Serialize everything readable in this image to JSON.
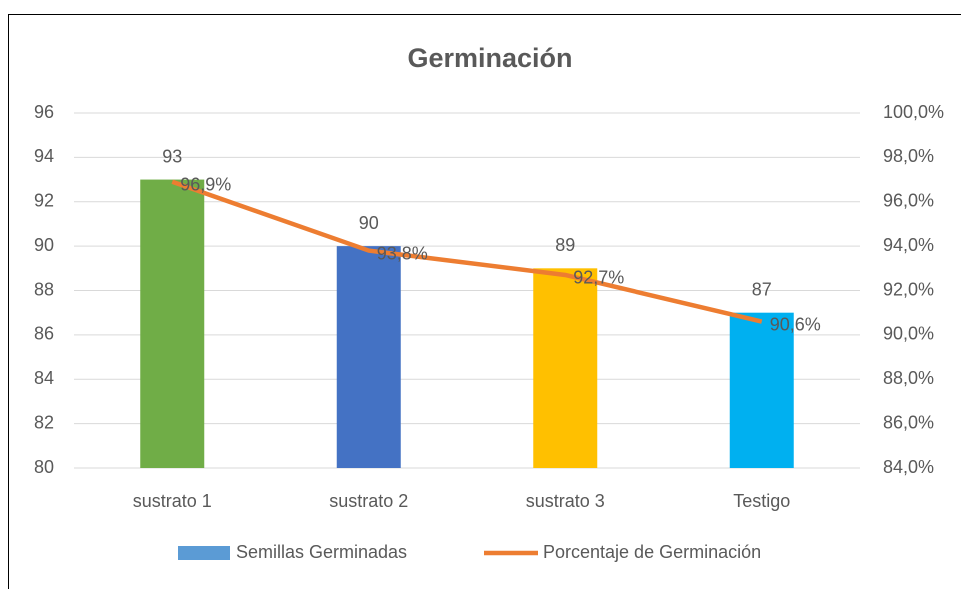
{
  "chart_data": {
    "type": "bar",
    "title": "Germinación",
    "categories": [
      "sustrato 1",
      "sustrato 2",
      "sustrato 3",
      "Testigo"
    ],
    "series": [
      {
        "name": "Semillas Germinadas",
        "type": "bar",
        "color": "#5b9bd5",
        "colors": [
          "#70ad47",
          "#4472c4",
          "#ffc000",
          "#00b0f0"
        ],
        "values": [
          93,
          90,
          89,
          87
        ]
      },
      {
        "name": "Porcentaje de Germinación",
        "type": "line",
        "axis": "y2",
        "color": "#ed7d31",
        "values": [
          96.9,
          93.8,
          92.7,
          90.6
        ],
        "value_labels": [
          "96,9%",
          "93,8%",
          "92,7%",
          "90,6%"
        ]
      }
    ],
    "ylim": [
      80,
      96
    ],
    "yticks": [
      80,
      82,
      84,
      86,
      88,
      90,
      92,
      94,
      96
    ],
    "y2lim": [
      84,
      100
    ],
    "y2ticks": [
      {
        "value": 84,
        "label": "84,0%"
      },
      {
        "value": 86,
        "label": "86,0%"
      },
      {
        "value": 88,
        "label": "88,0%"
      },
      {
        "value": 90,
        "label": "90,0%"
      },
      {
        "value": 92,
        "label": "92,0%"
      },
      {
        "value": 94,
        "label": "94,0%"
      },
      {
        "value": 96,
        "label": "96,0%"
      },
      {
        "value": 98,
        "label": "98,0%"
      },
      {
        "value": 100,
        "label": "100,0%"
      }
    ],
    "grid": true,
    "legend": "bottom"
  }
}
